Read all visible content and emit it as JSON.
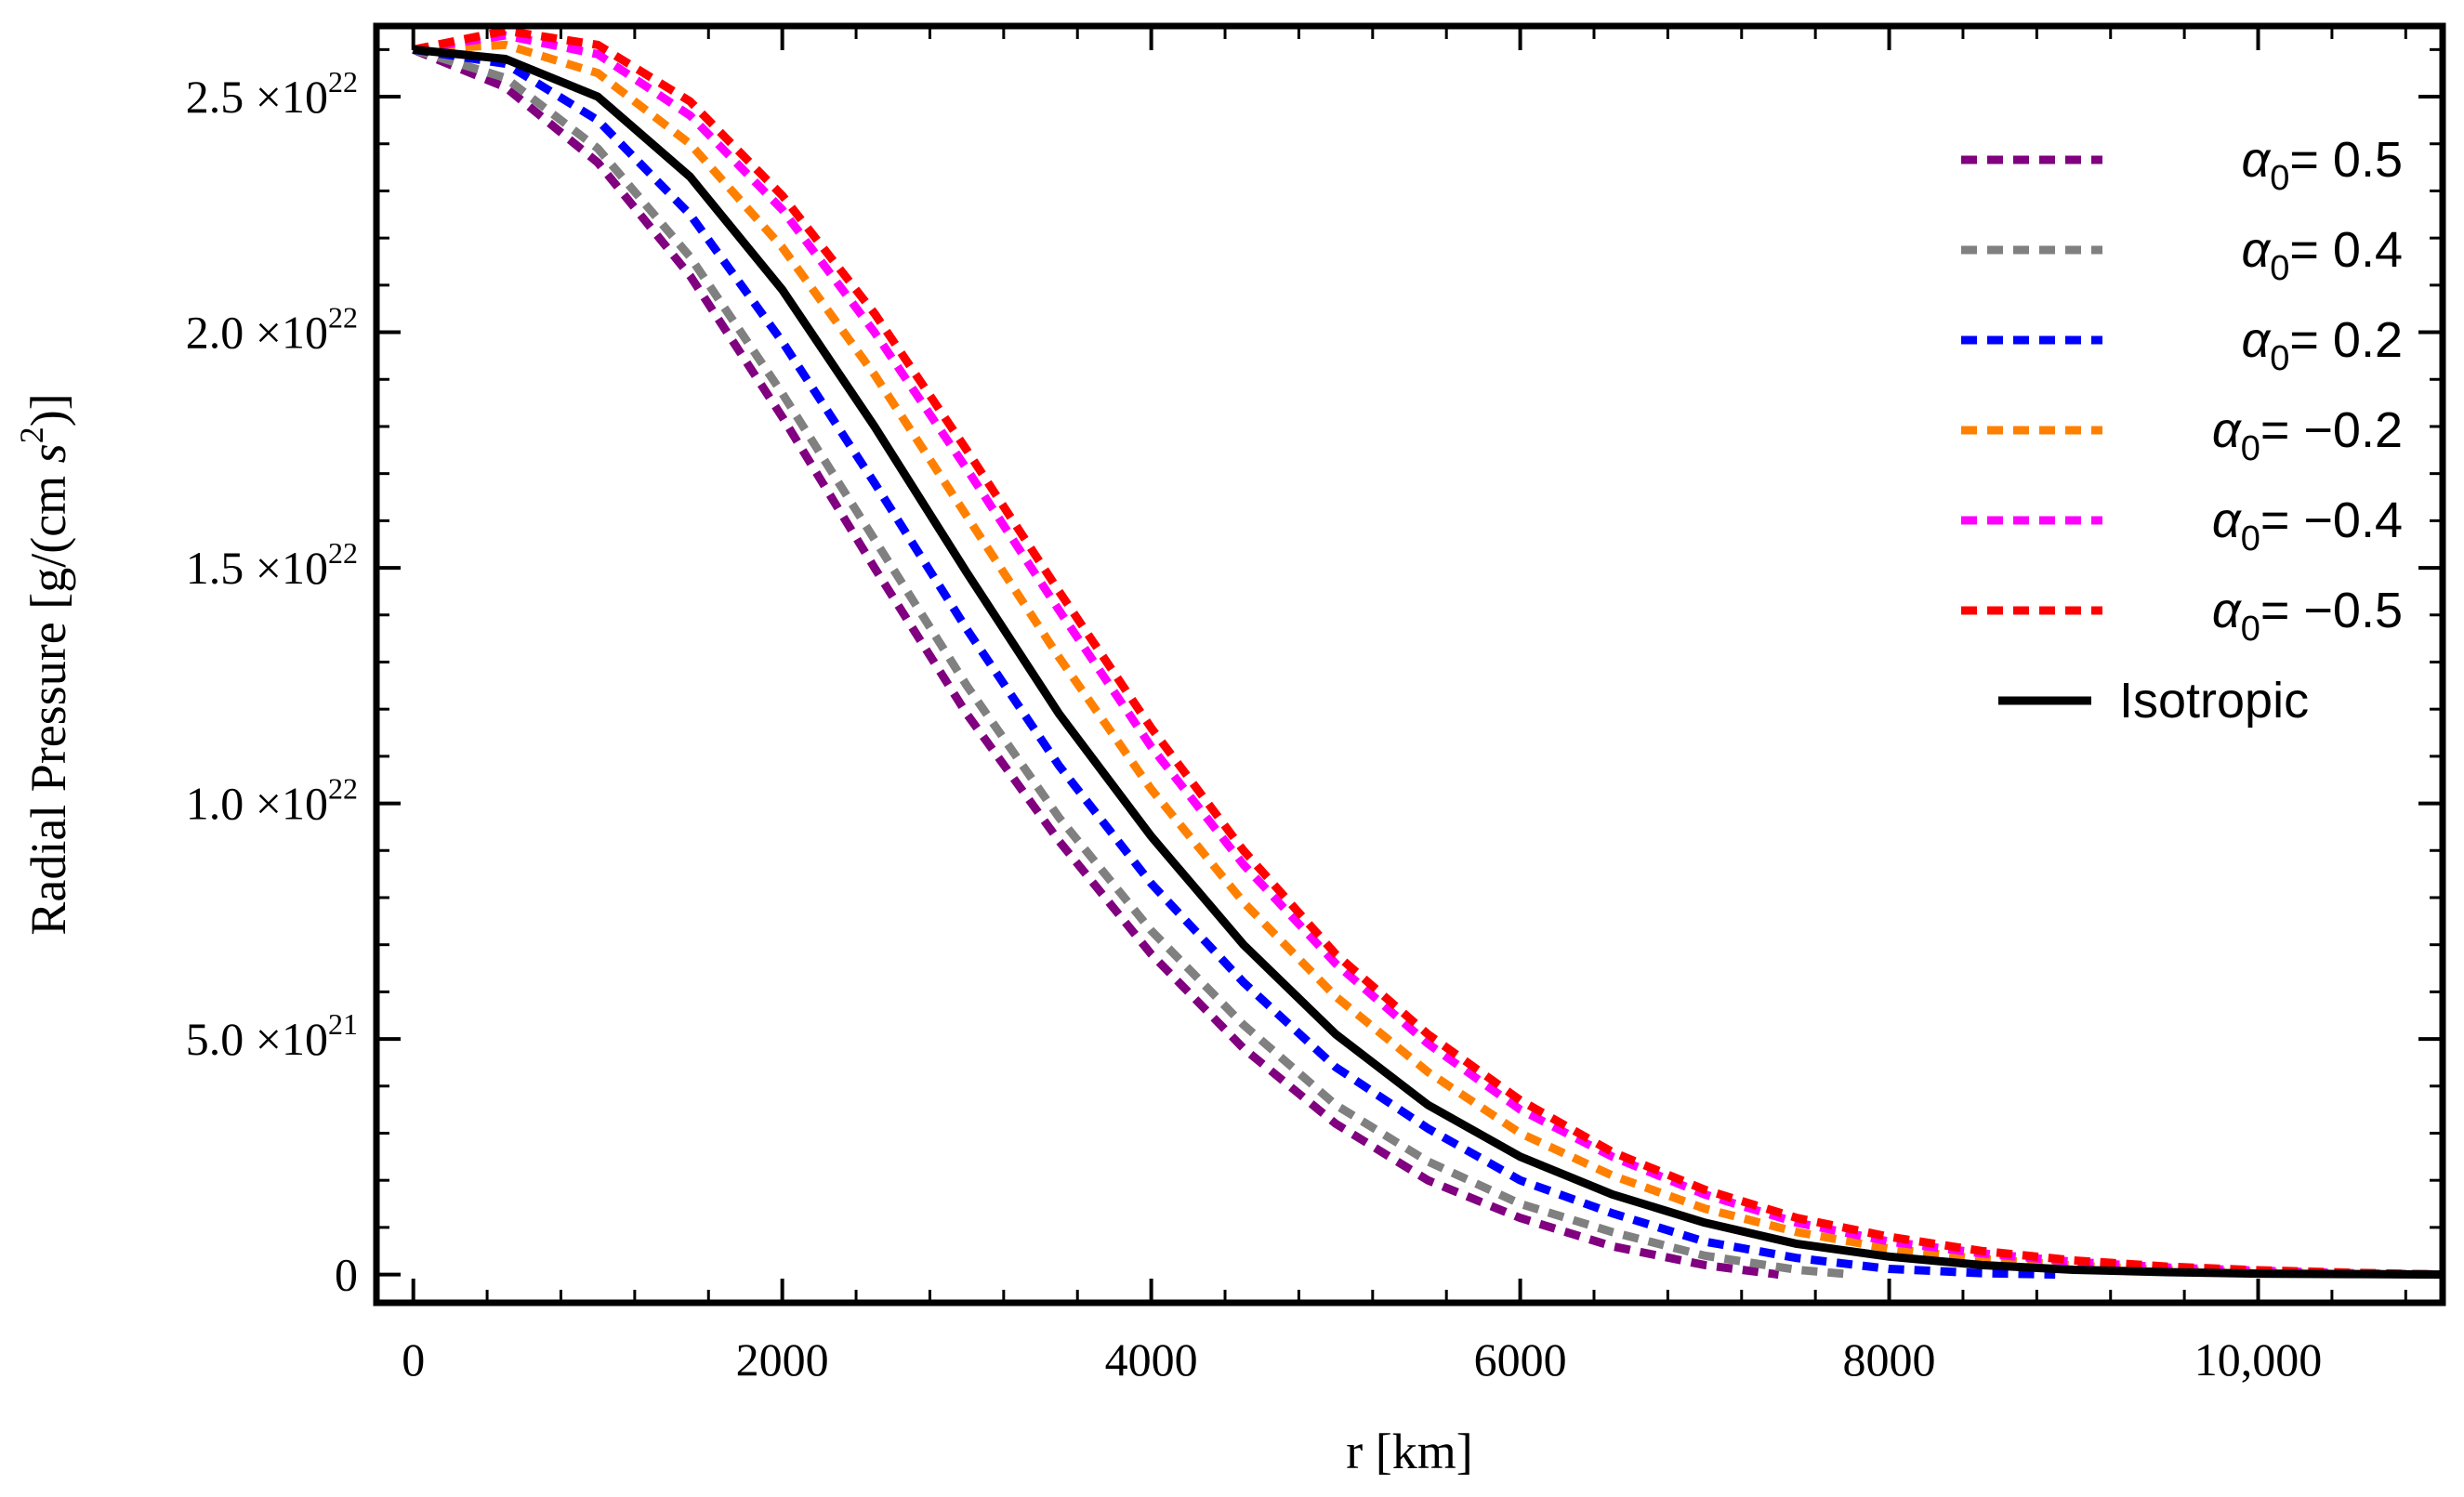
{
  "chart_data": {
    "type": "line",
    "xlabel": "r [km]",
    "ylabel": "Radial Pressure [g/(cm s^2)]",
    "xlim": [
      -200,
      11000
    ],
    "ylim": [
      -6e+20,
      2.65e+22
    ],
    "x_ticks": [
      {
        "value": 0,
        "label": "0"
      },
      {
        "value": 2000,
        "label": "2000"
      },
      {
        "value": 4000,
        "label": "4000"
      },
      {
        "value": 6000,
        "label": "6000"
      },
      {
        "value": 8000,
        "label": "8000"
      },
      {
        "value": 10000,
        "label": "10,000"
      }
    ],
    "y_ticks": [
      {
        "value": 0,
        "mantissa": "0",
        "exponent": ""
      },
      {
        "value": 5e+21,
        "mantissa": "5.0",
        "exponent": "21"
      },
      {
        "value": 1e+22,
        "mantissa": "1.0",
        "exponent": "22"
      },
      {
        "value": 1.5e+22,
        "mantissa": "1.5",
        "exponent": "22"
      },
      {
        "value": 2e+22,
        "mantissa": "2.0",
        "exponent": "22"
      },
      {
        "value": 2.5e+22,
        "mantissa": "2.5",
        "exponent": "22"
      }
    ],
    "tick_times_symbol": "×10",
    "series": [
      {
        "name": "α0= 0.5",
        "alpha": "0.5",
        "color": "#800080",
        "dashed": true,
        "x": [
          0,
          500,
          1000,
          1500,
          2000,
          2500,
          3000,
          3500,
          4000,
          4500,
          5000,
          5500,
          6000,
          6500,
          7000,
          7400
        ],
        "y": [
          2.6e+22,
          2.52e+22,
          2.36e+22,
          2.12e+22,
          1.82e+22,
          1.5e+22,
          1.19e+22,
          9.2e+21,
          6.8e+21,
          4.8e+21,
          3.2e+21,
          2e+21,
          1.2e+21,
          6e+20,
          2e+20,
          0.0
        ]
      },
      {
        "name": "α0= 0.4",
        "alpha": "0.4",
        "color": "#808080",
        "dashed": true,
        "x": [
          0,
          500,
          1000,
          1500,
          2000,
          2500,
          3000,
          3500,
          4000,
          4500,
          5000,
          5500,
          6000,
          6500,
          7000,
          7500,
          7800
        ],
        "y": [
          2.6e+22,
          2.54e+22,
          2.39e+22,
          2.16e+22,
          1.87e+22,
          1.56e+22,
          1.25e+22,
          9.7e+21,
          7.3e+21,
          5.3e+21,
          3.6e+21,
          2.4e+21,
          1.5e+21,
          9e+20,
          4e+20,
          1e+20,
          0.0
        ]
      },
      {
        "name": "α0= 0.2",
        "alpha": "0.2",
        "color": "#0000ff",
        "dashed": true,
        "x": [
          0,
          500,
          1000,
          1500,
          2000,
          2500,
          3000,
          3500,
          4000,
          4500,
          5000,
          5500,
          6000,
          6500,
          7000,
          7500,
          8000,
          8500,
          8900
        ],
        "y": [
          2.6e+22,
          2.57e+22,
          2.45e+22,
          2.25e+22,
          1.98e+22,
          1.68e+22,
          1.37e+22,
          1.08e+22,
          8.3e+21,
          6.2e+21,
          4.4e+21,
          3.1e+21,
          2e+21,
          1.3e+21,
          7e+20,
          3.5e+20,
          1.2e+20,
          3e+19,
          0.0
        ]
      },
      {
        "name": "α0= −0.2",
        "alpha": "−0.2",
        "color": "#ff8000",
        "dashed": true,
        "x": [
          0,
          500,
          1000,
          1500,
          2000,
          2500,
          3000,
          3500,
          4000,
          4500,
          5000,
          5500,
          6000,
          6500,
          7000,
          7500,
          8000,
          8500,
          9000,
          9500,
          10000,
          10500,
          11000
        ],
        "y": [
          2.6e+22,
          2.61e+22,
          2.55e+22,
          2.4e+22,
          2.18e+22,
          1.91e+22,
          1.61e+22,
          1.31e+22,
          1.03e+22,
          7.9e+21,
          5.9e+21,
          4.3e+21,
          3e+21,
          2.1e+21,
          1.4e+21,
          9e+20,
          5.5e+20,
          3.3e+20,
          1.9e+20,
          1e+20,
          5e+19,
          2e+19,
          0.0
        ]
      },
      {
        "name": "α0= −0.4",
        "alpha": "−0.4",
        "color": "#ff00ff",
        "dashed": true,
        "x": [
          0,
          500,
          1000,
          1500,
          2000,
          2500,
          3000,
          3500,
          4000,
          4500,
          5000,
          5500,
          6000,
          6500,
          7000,
          7500,
          8000,
          8500,
          9000,
          9500,
          10000,
          10500,
          11000
        ],
        "y": [
          2.6e+22,
          2.63e+22,
          2.59e+22,
          2.46e+22,
          2.26e+22,
          2e+22,
          1.71e+22,
          1.41e+22,
          1.12e+22,
          8.7e+21,
          6.6e+21,
          4.9e+21,
          3.5e+21,
          2.5e+21,
          1.7e+21,
          1.1e+21,
          7e+20,
          4.5e+20,
          2.7e+20,
          1.5e+20,
          8e+19,
          3e+19,
          0.0
        ]
      },
      {
        "name": "α0= −0.5",
        "alpha": "−0.5",
        "color": "#ff0000",
        "dashed": true,
        "x": [
          0,
          500,
          1000,
          1500,
          2000,
          2500,
          3000,
          3500,
          4000,
          4500,
          5000,
          5500,
          6000,
          6500,
          7000,
          7500,
          8000,
          8500,
          9000,
          9500,
          10000,
          10500,
          11000
        ],
        "y": [
          2.6e+22,
          2.64e+22,
          2.61e+22,
          2.49e+22,
          2.29e+22,
          2.04e+22,
          1.75e+22,
          1.45e+22,
          1.16e+22,
          9e+21,
          6.8e+21,
          5.1e+21,
          3.7e+21,
          2.6e+21,
          1.8e+21,
          1.2e+21,
          8e+20,
          5e+20,
          3e+20,
          1.7e+20,
          9e+19,
          4e+19,
          0.0
        ]
      },
      {
        "name": "Isotropic",
        "alpha": "",
        "color": "#000000",
        "dashed": false,
        "x": [
          0,
          500,
          1000,
          1500,
          2000,
          2500,
          3000,
          3500,
          4000,
          4500,
          5000,
          5500,
          6000,
          6500,
          7000,
          7500,
          8000,
          8500,
          9000,
          9500,
          10000,
          10500,
          11000
        ],
        "y": [
          2.6e+22,
          2.58e+22,
          2.5e+22,
          2.33e+22,
          2.09e+22,
          1.8e+22,
          1.49e+22,
          1.19e+22,
          9.3e+21,
          7e+21,
          5.1e+21,
          3.6e+21,
          2.5e+21,
          1.7e+21,
          1.1e+21,
          6.5e+20,
          3.8e+20,
          2e+20,
          1e+20,
          5e+19,
          2e+19,
          1e+19,
          0.0
        ]
      }
    ],
    "legend_position": "top-right"
  }
}
